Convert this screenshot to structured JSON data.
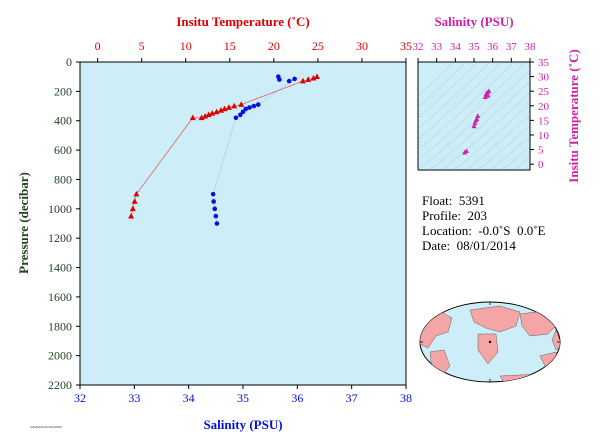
{
  "info": {
    "float_label": "Float:",
    "float_value": "5391",
    "profile_label": "Profile:",
    "profile_value": "203",
    "location_label": "Location:",
    "location_value": "-0.0˚S  0.0˚E",
    "date_label": "Date:",
    "date_value": "08/01/2014"
  },
  "stamp": "AOML/NOAA 20140810",
  "colors": {
    "plot_bg": "#cdeef8",
    "temperature": "#dd0000",
    "salinity": "#0011dd",
    "ts_axis": "#cc22aa",
    "pressure_axis": "#224422",
    "map_ocean": "#cdeef8",
    "map_land": "#f4a6a6",
    "temperature_line": "#e06060",
    "salinity_line": "#7aa6d8"
  },
  "chart_data": [
    {
      "type": "scatter",
      "title": "",
      "xlabel_top": "Insitu Temperature (˚C)",
      "xlabel_bottom": "Salinity (PSU)",
      "ylabel": "Pressure (decibar)",
      "temp_ticks": [
        "0",
        "5",
        "10",
        "15",
        "20",
        "25",
        "30",
        "35"
      ],
      "sal_ticks": [
        "32",
        "33",
        "34",
        "35",
        "36",
        "37",
        "38"
      ],
      "pressure_ticks": [
        "0",
        "200",
        "400",
        "600",
        "800",
        "1000",
        "1200",
        "1400",
        "1600",
        "1800",
        "2000",
        "2200"
      ],
      "temp_range": [
        -2,
        35
      ],
      "sal_range": [
        32,
        38
      ],
      "pressure_range": [
        0,
        2200
      ],
      "grid": false,
      "temperature_series": [
        {
          "t": 24.9,
          "p": 100
        },
        {
          "t": 24.5,
          "p": 110
        },
        {
          "t": 23.9,
          "p": 120
        },
        {
          "t": 23.3,
          "p": 130
        },
        {
          "t": 16.3,
          "p": 290
        },
        {
          "t": 15.5,
          "p": 300
        },
        {
          "t": 14.9,
          "p": 310
        },
        {
          "t": 14.4,
          "p": 320
        },
        {
          "t": 14.0,
          "p": 330
        },
        {
          "t": 13.5,
          "p": 340
        },
        {
          "t": 13.0,
          "p": 350
        },
        {
          "t": 12.6,
          "p": 360
        },
        {
          "t": 12.2,
          "p": 370
        },
        {
          "t": 11.8,
          "p": 380
        },
        {
          "t": 10.8,
          "p": 380
        },
        {
          "t": 4.4,
          "p": 900
        },
        {
          "t": 4.2,
          "p": 950
        },
        {
          "t": 4.0,
          "p": 1000
        },
        {
          "t": 3.8,
          "p": 1050
        }
      ],
      "salinity_series": [
        {
          "s": 35.65,
          "p": 100
        },
        {
          "s": 35.67,
          "p": 120
        },
        {
          "s": 35.85,
          "p": 130
        },
        {
          "s": 35.95,
          "p": 115
        },
        {
          "s": 35.28,
          "p": 290
        },
        {
          "s": 35.2,
          "p": 300
        },
        {
          "s": 35.12,
          "p": 310
        },
        {
          "s": 35.05,
          "p": 320
        },
        {
          "s": 35.0,
          "p": 340
        },
        {
          "s": 34.95,
          "p": 360
        },
        {
          "s": 34.87,
          "p": 380
        },
        {
          "s": 34.45,
          "p": 900
        },
        {
          "s": 34.46,
          "p": 950
        },
        {
          "s": 34.48,
          "p": 1000
        },
        {
          "s": 34.5,
          "p": 1050
        },
        {
          "s": 34.52,
          "p": 1100
        }
      ]
    },
    {
      "type": "scatter",
      "title": "",
      "xlabel": "Salinity (PSU)",
      "ylabel": "Insitu Temperature (˚C)",
      "x_ticks": [
        "32",
        "33",
        "34",
        "35",
        "36",
        "37",
        "38"
      ],
      "y_ticks": [
        "0",
        "5",
        "10",
        "15",
        "20",
        "25",
        "30",
        "35"
      ],
      "xlim": [
        32,
        38
      ],
      "ylim": [
        -2,
        35
      ],
      "points": [
        {
          "s": 34.5,
          "t": 4.0
        },
        {
          "s": 34.6,
          "t": 4.5
        },
        {
          "s": 35.0,
          "t": 13.0
        },
        {
          "s": 35.05,
          "t": 14.0
        },
        {
          "s": 35.1,
          "t": 15.0
        },
        {
          "s": 35.15,
          "t": 15.5
        },
        {
          "s": 35.2,
          "t": 16.5
        },
        {
          "s": 35.6,
          "t": 23.0
        },
        {
          "s": 35.65,
          "t": 24.0
        },
        {
          "s": 35.7,
          "t": 24.5
        },
        {
          "s": 35.8,
          "t": 25.0
        },
        {
          "s": 35.75,
          "t": 23.5
        }
      ]
    }
  ]
}
